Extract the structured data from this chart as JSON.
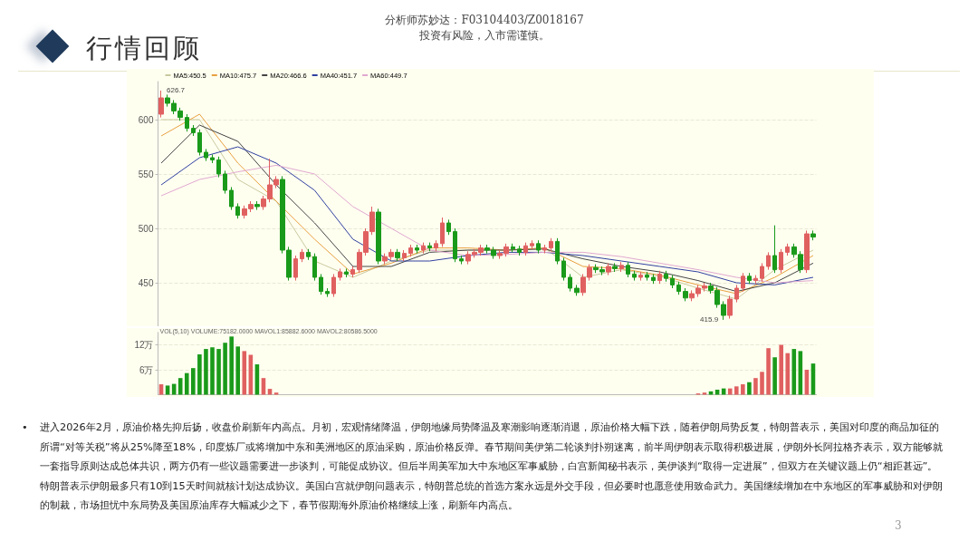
{
  "chart_data": [
    {
      "type": "candlestick",
      "title": "行情回顾",
      "subtitle": "分析师苏妙达：F03104403/Z0018167\n投资有风险，入市需谨慎。",
      "categories": [
        null,
        null,
        null,
        null,
        null,
        null,
        null,
        null,
        null,
        null,
        null,
        null,
        null,
        null,
        null,
        null,
        null,
        null,
        null,
        null,
        null,
        null,
        null,
        null,
        null,
        null,
        null,
        null,
        null,
        null,
        null,
        null,
        null,
        null,
        null,
        null,
        null,
        null,
        null,
        null,
        null,
        null,
        null,
        null,
        null,
        null,
        null,
        null,
        null,
        null,
        null,
        null,
        null,
        null,
        null,
        null,
        null,
        null,
        null,
        null,
        null,
        null,
        null,
        null,
        null,
        null,
        null,
        null,
        null,
        null,
        null,
        null,
        null,
        null,
        null,
        null,
        null,
        null,
        null,
        null,
        null,
        null,
        null,
        null,
        null,
        null,
        null,
        null,
        null,
        null,
        null,
        null,
        null,
        null,
        null,
        null,
        null,
        null,
        null,
        null,
        null,
        null,
        null
      ],
      "ohlc": [
        [
          605,
          626.7,
          602,
          620
        ],
        [
          620,
          623,
          612,
          615
        ],
        [
          615,
          618,
          605,
          608
        ],
        [
          608,
          611,
          599,
          602
        ],
        [
          602,
          605,
          589,
          592
        ],
        [
          592,
          595,
          585,
          588
        ],
        [
          588,
          591,
          567,
          570
        ],
        [
          570,
          573,
          562,
          565
        ],
        [
          565,
          568,
          560,
          563
        ],
        [
          563,
          566,
          547,
          550
        ],
        [
          550,
          553,
          532,
          535
        ],
        [
          535,
          538,
          517,
          520
        ],
        [
          520,
          523,
          509,
          512
        ],
        [
          512,
          521,
          509,
          518
        ],
        [
          518,
          525,
          515,
          522
        ],
        [
          522,
          525,
          517,
          520
        ],
        [
          520,
          530,
          517,
          527
        ],
        [
          527,
          564,
          524,
          540
        ],
        [
          540,
          548,
          537,
          545
        ],
        [
          545,
          548,
          477,
          480
        ],
        [
          480,
          483,
          452,
          455
        ],
        [
          455,
          475,
          452,
          472
        ],
        [
          472,
          481,
          469,
          478
        ],
        [
          478,
          481,
          471,
          474
        ],
        [
          474,
          477,
          452,
          455
        ],
        [
          455,
          458,
          439,
          442
        ],
        [
          442,
          445,
          437,
          440
        ],
        [
          440,
          458,
          437,
          455
        ],
        [
          455,
          463,
          452,
          460
        ],
        [
          460,
          463,
          455,
          458
        ],
        [
          458,
          465,
          455,
          462
        ],
        [
          462,
          481,
          459,
          478
        ],
        [
          478,
          500,
          475,
          497
        ],
        [
          497,
          520,
          494,
          515
        ],
        [
          515,
          518,
          467,
          470
        ],
        [
          470,
          477,
          467,
          474
        ],
        [
          474,
          481,
          471,
          478
        ],
        [
          478,
          481,
          470,
          473
        ],
        [
          473,
          480,
          470,
          477
        ],
        [
          477,
          485,
          474,
          482
        ],
        [
          482,
          485,
          477,
          480
        ],
        [
          480,
          487,
          477,
          484
        ],
        [
          484,
          487,
          479,
          482
        ],
        [
          482,
          489,
          479,
          486
        ],
        [
          486,
          510,
          483,
          505
        ],
        [
          505,
          508,
          494,
          497
        ],
        [
          497,
          500,
          469,
          472
        ],
        [
          472,
          475,
          467,
          470
        ],
        [
          470,
          479,
          467,
          476
        ],
        [
          476,
          481,
          473,
          478
        ],
        [
          478,
          485,
          475,
          482
        ],
        [
          482,
          485,
          477,
          480
        ],
        [
          480,
          483,
          472,
          475
        ],
        [
          475,
          480,
          472,
          477
        ],
        [
          477,
          486,
          474,
          483
        ],
        [
          483,
          486,
          478,
          481
        ],
        [
          481,
          484,
          475,
          478
        ],
        [
          478,
          487,
          475,
          484
        ],
        [
          484,
          489,
          481,
          486
        ],
        [
          486,
          489,
          477,
          480
        ],
        [
          480,
          485,
          477,
          482
        ],
        [
          482,
          491,
          479,
          488
        ],
        [
          488,
          491,
          467,
          470
        ],
        [
          470,
          473,
          452,
          455
        ],
        [
          455,
          458,
          442,
          445
        ],
        [
          445,
          448,
          438,
          441
        ],
        [
          441,
          458,
          438,
          455
        ],
        [
          455,
          467,
          452,
          464
        ],
        [
          464,
          467,
          459,
          462
        ],
        [
          462,
          465,
          457,
          460
        ],
        [
          460,
          468,
          457,
          465
        ],
        [
          465,
          468,
          460,
          463
        ],
        [
          463,
          469,
          460,
          466
        ],
        [
          466,
          469,
          455,
          458
        ],
        [
          458,
          461,
          452,
          455
        ],
        [
          455,
          460,
          452,
          457
        ],
        [
          457,
          460,
          452,
          455
        ],
        [
          455,
          458,
          449,
          452
        ],
        [
          452,
          461,
          449,
          458
        ],
        [
          458,
          461,
          451,
          454
        ],
        [
          454,
          457,
          445,
          448
        ],
        [
          448,
          451,
          439,
          442
        ],
        [
          442,
          445,
          433,
          436
        ],
        [
          436,
          443,
          433,
          440
        ],
        [
          440,
          448,
          437,
          445
        ],
        [
          445,
          450,
          442,
          447
        ],
        [
          447,
          450,
          440,
          443
        ],
        [
          443,
          446,
          427,
          430
        ],
        [
          430,
          433,
          415.9,
          420
        ],
        [
          420,
          438,
          417,
          435
        ],
        [
          435,
          448,
          432,
          445
        ],
        [
          445,
          459,
          442,
          456
        ],
        [
          456,
          459,
          449,
          452
        ],
        [
          452,
          457,
          449,
          454
        ],
        [
          454,
          468,
          451,
          465
        ],
        [
          465,
          478,
          462,
          475
        ],
        [
          475,
          502.8,
          459,
          462
        ],
        [
          462,
          481,
          459,
          478
        ],
        [
          478,
          486,
          475,
          483
        ],
        [
          483,
          486,
          473,
          476
        ],
        [
          476,
          479,
          459,
          462
        ],
        [
          462,
          498,
          459,
          495
        ],
        [
          495,
          498,
          489,
          492
        ]
      ],
      "colors": [
        "#e06060",
        "#1a9a1a",
        "#1a9a1a",
        "#1a9a1a",
        "#1a9a1a",
        "#1a9a1a",
        "#1a9a1a",
        "#1a9a1a",
        "#1a9a1a",
        "#1a9a1a",
        "#1a9a1a",
        "#1a9a1a",
        "#1a9a1a",
        "#e06060",
        "#e06060",
        "#1a9a1a",
        "#e06060",
        "#e06060",
        "#e06060",
        "#1a9a1a",
        "#1a9a1a",
        "#e06060",
        "#e06060",
        "#1a9a1a",
        "#1a9a1a",
        "#1a9a1a",
        "#1a9a1a",
        "#e06060",
        "#e06060",
        "#1a9a1a",
        "#e06060",
        "#e06060",
        "#e06060",
        "#e06060",
        "#1a9a1a",
        "#e06060",
        "#e06060",
        "#1a9a1a",
        "#e06060",
        "#e06060",
        "#1a9a1a",
        "#e06060",
        "#1a9a1a",
        "#e06060",
        "#e06060",
        "#1a9a1a",
        "#1a9a1a",
        "#1a9a1a",
        "#e06060",
        "#e06060",
        "#e06060",
        "#1a9a1a",
        "#1a9a1a",
        "#e06060",
        "#e06060",
        "#1a9a1a",
        "#1a9a1a",
        "#e06060",
        "#e06060",
        "#1a9a1a",
        "#e06060",
        "#e06060",
        "#1a9a1a",
        "#1a9a1a",
        "#1a9a1a",
        "#1a9a1a",
        "#e06060",
        "#e06060",
        "#1a9a1a",
        "#1a9a1a",
        "#e06060",
        "#1a9a1a",
        "#e06060",
        "#1a9a1a",
        "#1a9a1a",
        "#e06060",
        "#1a9a1a",
        "#1a9a1a",
        "#e06060",
        "#1a9a1a",
        "#1a9a1a",
        "#1a9a1a",
        "#1a9a1a",
        "#e06060",
        "#e06060",
        "#e06060",
        "#1a9a1a",
        "#1a9a1a",
        "#1a9a1a",
        "#e06060",
        "#e06060",
        "#e06060",
        "#1a9a1a",
        "#e06060",
        "#e06060",
        "#e06060",
        "#1a9a1a",
        "#e06060",
        "#e06060",
        "#1a9a1a",
        "#1a9a1a",
        "#e06060",
        "#1a9a1a"
      ],
      "series": [
        {
          "type": "line",
          "name": "MA5:450.5",
          "color": "#c9c9a0",
          "values": [
            600,
            null,
            null,
            null,
            null,
            null,
            600,
            null,
            null,
            null,
            null,
            null,
            545,
            null,
            null,
            null,
            null,
            null,
            525,
            null,
            null,
            null,
            null,
            null,
            470,
            null,
            null,
            null,
            null,
            null,
            455,
            null,
            null,
            null,
            null,
            null,
            470,
            null,
            null,
            null,
            null,
            null,
            480,
            null,
            null,
            null,
            null,
            null,
            480,
            null,
            null,
            null,
            null,
            null,
            480,
            null,
            null,
            null,
            null,
            null,
            482,
            null,
            null,
            null,
            null,
            null,
            455,
            null,
            null,
            null,
            null,
            null,
            462,
            null,
            null,
            null,
            null,
            null,
            456,
            null,
            null,
            null,
            null,
            null,
            445,
            null,
            null,
            null,
            null,
            null,
            435,
            null,
            null,
            null,
            null,
            null,
            462,
            null,
            null,
            null,
            null,
            null,
            480
          ]
        },
        {
          "type": "line",
          "name": "MA10:475.7",
          "color": "#e8a040",
          "values": [
            585,
            null,
            null,
            null,
            null,
            null,
            605,
            null,
            null,
            null,
            null,
            null,
            560,
            null,
            null,
            null,
            null,
            null,
            525,
            null,
            null,
            null,
            null,
            null,
            490,
            null,
            null,
            null,
            null,
            null,
            458,
            null,
            null,
            null,
            null,
            null,
            468,
            null,
            null,
            null,
            null,
            null,
            482,
            null,
            null,
            null,
            null,
            null,
            482,
            null,
            null,
            null,
            null,
            null,
            480,
            null,
            null,
            null,
            null,
            null,
            482,
            null,
            null,
            null,
            null,
            null,
            465,
            null,
            null,
            null,
            null,
            null,
            463,
            null,
            null,
            null,
            null,
            null,
            457,
            null,
            null,
            null,
            null,
            null,
            448,
            null,
            null,
            null,
            null,
            null,
            440,
            null,
            null,
            null,
            null,
            null,
            455,
            null,
            null,
            null,
            null,
            null,
            475
          ]
        },
        {
          "type": "line",
          "name": "MA20:466.6",
          "color": "#444444",
          "values": [
            560,
            null,
            null,
            null,
            null,
            null,
            595,
            null,
            null,
            null,
            null,
            null,
            580,
            null,
            null,
            null,
            null,
            null,
            540,
            null,
            null,
            null,
            null,
            null,
            505,
            null,
            null,
            null,
            null,
            null,
            465,
            null,
            null,
            null,
            null,
            null,
            465,
            null,
            null,
            null,
            null,
            null,
            478,
            null,
            null,
            null,
            null,
            null,
            480,
            null,
            null,
            null,
            null,
            null,
            480,
            null,
            null,
            null,
            null,
            null,
            481,
            null,
            null,
            null,
            null,
            null,
            472,
            null,
            null,
            null,
            null,
            null,
            465,
            null,
            null,
            null,
            null,
            null,
            460,
            null,
            null,
            null,
            null,
            null,
            452,
            null,
            null,
            null,
            null,
            null,
            442,
            null,
            null,
            null,
            null,
            null,
            450,
            null,
            null,
            null,
            null,
            null,
            468
          ]
        },
        {
          "type": "line",
          "name": "MA40:451.7",
          "color": "#3040a0",
          "values": [
            540,
            null,
            null,
            null,
            null,
            null,
            565,
            null,
            null,
            null,
            null,
            null,
            575,
            null,
            null,
            null,
            null,
            null,
            560,
            null,
            null,
            null,
            null,
            null,
            535,
            null,
            null,
            null,
            null,
            null,
            490,
            null,
            null,
            null,
            null,
            null,
            470,
            null,
            null,
            null,
            null,
            null,
            470,
            null,
            null,
            null,
            null,
            null,
            475,
            null,
            null,
            null,
            null,
            null,
            478,
            null,
            null,
            null,
            null,
            null,
            478,
            null,
            null,
            null,
            null,
            null,
            475,
            null,
            null,
            null,
            null,
            null,
            470,
            null,
            null,
            null,
            null,
            null,
            465,
            null,
            null,
            null,
            null,
            null,
            460,
            null,
            null,
            null,
            null,
            null,
            450,
            null,
            null,
            null,
            null,
            null,
            448,
            null,
            null,
            null,
            null,
            null,
            455
          ]
        },
        {
          "type": "line",
          "name": "MA60:449.7",
          "color": "#e0a8d0",
          "values": [
            530,
            null,
            null,
            null,
            null,
            null,
            545,
            null,
            null,
            null,
            null,
            null,
            552,
            null,
            null,
            null,
            null,
            null,
            558,
            null,
            null,
            null,
            null,
            null,
            550,
            null,
            null,
            null,
            null,
            null,
            520,
            null,
            null,
            null,
            null,
            null,
            500,
            null,
            null,
            null,
            null,
            null,
            480,
            null,
            null,
            null,
            null,
            null,
            475,
            null,
            null,
            null,
            null,
            null,
            476,
            null,
            null,
            null,
            null,
            null,
            478,
            null,
            null,
            null,
            null,
            null,
            478,
            null,
            null,
            null,
            null,
            null,
            474,
            null,
            null,
            null,
            null,
            null,
            468,
            null,
            null,
            null,
            null,
            null,
            462,
            null,
            null,
            null,
            null,
            null,
            455,
            null,
            null,
            null,
            null,
            null,
            450,
            null,
            null,
            null,
            null,
            null,
            452
          ]
        }
      ],
      "ylim": [
        410,
        635
      ],
      "yticks": [
        450,
        500,
        550,
        600
      ],
      "tick_labels": "y",
      "grid": "y",
      "legend": "top left",
      "marker": "none",
      "annotations": [
        "626.7",
        "415.9"
      ]
    },
    {
      "type": "bar",
      "title": "VOL(5,10) VOLUME:75182.0000 MAVOL1:85882.6000 MAVOL2:80586.5000",
      "categories": [
        null,
        null,
        null,
        null,
        null,
        null,
        null,
        null,
        null,
        null,
        null,
        null,
        null,
        null,
        null,
        null,
        null,
        null,
        null,
        null,
        null,
        null,
        null,
        null,
        null,
        null,
        null,
        null,
        null,
        null,
        null,
        null,
        null,
        null,
        null,
        null,
        null,
        null,
        null,
        null,
        null,
        null,
        null,
        null,
        null,
        null,
        null,
        null,
        null,
        null,
        null,
        null,
        null,
        null,
        null,
        null,
        null,
        null,
        null,
        null,
        null,
        null,
        null,
        null,
        null,
        null,
        null,
        null,
        null,
        null,
        null,
        null,
        null,
        null,
        null,
        null,
        null,
        null,
        null,
        null,
        null,
        null,
        null,
        null,
        null,
        null,
        null,
        null,
        null,
        null,
        null,
        null,
        null,
        null,
        null,
        null,
        null,
        null,
        null,
        null,
        null,
        null,
        null
      ],
      "values": [
        2.5,
        2.2,
        2.6,
        4,
        5.2,
        6.4,
        9.7,
        11,
        11.4,
        11,
        12.5,
        14,
        11.6,
        10.5,
        9.6,
        7.3,
        4,
        1.4,
        0.5,
        0,
        0,
        0,
        0,
        0,
        0,
        0,
        0,
        0,
        0,
        0,
        0,
        0,
        0,
        0,
        0,
        0,
        0,
        0,
        0,
        0,
        0,
        0,
        0,
        0,
        0,
        0,
        0,
        0,
        0,
        0,
        0,
        0,
        0,
        0,
        0,
        0,
        0,
        0,
        0,
        0,
        0,
        0,
        0,
        0,
        0,
        0,
        0,
        0,
        0,
        0,
        0,
        0,
        0,
        0,
        0,
        0,
        0,
        0,
        0,
        0,
        0,
        0,
        0,
        0,
        0.3,
        0.5,
        0.8,
        1.2,
        1.5,
        1.5,
        2,
        2.5,
        3,
        4,
        5.5,
        11.2,
        9,
        12,
        10,
        11,
        10.5,
        6,
        7.5
      ],
      "colors": [
        "#e06060",
        "#1a9a1a",
        "#1a9a1a",
        "#1a9a1a",
        "#1a9a1a",
        "#1a9a1a",
        "#1a9a1a",
        "#1a9a1a",
        "#1a9a1a",
        "#1a9a1a",
        "#1a9a1a",
        "#1a9a1a",
        "#1a9a1a",
        "#e06060",
        "#e06060",
        "#1a9a1a",
        "#e06060",
        "#e06060",
        "#e06060",
        "#1a9a1a",
        "#1a9a1a",
        "#e06060",
        "#e06060",
        "#1a9a1a",
        "#1a9a1a",
        "#1a9a1a",
        "#1a9a1a",
        "#e06060",
        "#e06060",
        "#1a9a1a",
        "#e06060",
        "#e06060",
        "#e06060",
        "#e06060",
        "#1a9a1a",
        "#e06060",
        "#e06060",
        "#1a9a1a",
        "#e06060",
        "#e06060",
        "#1a9a1a",
        "#e06060",
        "#1a9a1a",
        "#e06060",
        "#e06060",
        "#1a9a1a",
        "#1a9a1a",
        "#1a9a1a",
        "#e06060",
        "#e06060",
        "#e06060",
        "#1a9a1a",
        "#1a9a1a",
        "#e06060",
        "#e06060",
        "#1a9a1a",
        "#1a9a1a",
        "#e06060",
        "#e06060",
        "#1a9a1a",
        "#e06060",
        "#e06060",
        "#1a9a1a",
        "#1a9a1a",
        "#1a9a1a",
        "#1a9a1a",
        "#e06060",
        "#e06060",
        "#1a9a1a",
        "#1a9a1a",
        "#e06060",
        "#1a9a1a",
        "#e06060",
        "#1a9a1a",
        "#1a9a1a",
        "#e06060",
        "#1a9a1a",
        "#1a9a1a",
        "#e06060",
        "#1a9a1a",
        "#1a9a1a",
        "#1a9a1a",
        "#1a9a1a",
        "#e06060",
        "#e06060",
        "#e06060",
        "#1a9a1a",
        "#1a9a1a",
        "#1a9a1a",
        "#e06060",
        "#e06060",
        "#e06060",
        "#1a9a1a",
        "#e06060",
        "#e06060",
        "#e06060",
        "#1a9a1a",
        "#e06060",
        "#e06060",
        "#1a9a1a",
        "#1a9a1a",
        "#e06060",
        "#1a9a1a"
      ],
      "ylim": [
        0,
        15
      ],
      "yticks": [
        {
          "value": 6,
          "label": "6万"
        },
        {
          "value": 12,
          "label": "12万"
        }
      ],
      "tick_labels": "y",
      "grid": "y",
      "annotations": [
        "•",
        "进入2026年2月，原油价格先抑后扬，收盘价刷新年内高点。月初，宏观情绪降温，伊朗地缘局势降温及寒潮影响逐渐消退，原油价格大幅下跌，随着伊朗局势反复，特朗普表示，美国对印度的商品加征的所谓“对等关税”将从25%降至18%，印度炼厂或将增加中东和美洲地区的原油采购，原油价格反弹。春节期间美伊第二轮谈判扑朔迷离，前半周伊朗表示取得积极进展，伊朗外长阿拉格齐表示，双方能够就一套指导原则达成总体共识，两方仍有一些议题需要进一步谈判，可能促成协议。但后半周美军加大中东地区军事威胁，白宫新闻秘书表示，美伊谈判“取得一定进展”，但双方在关键议题上仍“相距甚远”。特朗普表示伊朗最多只有10到15天时间就核计划达成协议。美国白宫就伊朗问题表示，特朗普总统的首选方案永远是外交手段，但必要时也愿意使用致命武力。美国继续增加在中东地区的军事威胁和对伊朗的制裁，市场担忧中东局势及美国原油库存大幅减少之下，春节假期海外原油价格继续上涨，刷新年内高点。",
        "3"
      ]
    }
  ]
}
